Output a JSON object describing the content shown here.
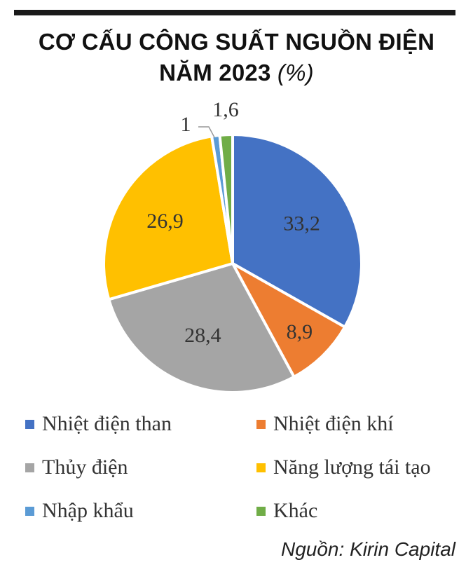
{
  "title_line1": "CƠ CẤU CÔNG SUẤT NGUỒN ĐIỆN",
  "title_line2_main": "NĂM 2023",
  "title_line2_unit": "(%)",
  "source": "Nguồn: Kirin Capital",
  "chart_data": {
    "type": "pie",
    "title": "CƠ CẤU CÔNG SUẤT NGUỒN ĐIỆN NĂM 2023 (%)",
    "categories": [
      "Nhiệt điện than",
      "Nhiệt điện khí",
      "Thủy điện",
      "Năng lượng tái tạo",
      "Nhập khẩu",
      "Khác"
    ],
    "values": [
      33.2,
      8.9,
      28.4,
      26.9,
      1,
      1.6
    ],
    "labels": [
      "33,2",
      "8,9",
      "28,4",
      "26,9",
      "1",
      "1,6"
    ],
    "colors": [
      "#4472C4",
      "#ED7D31",
      "#A5A5A5",
      "#FFC000",
      "#5B9BD5",
      "#70AD47"
    ],
    "legend_position": "bottom"
  }
}
